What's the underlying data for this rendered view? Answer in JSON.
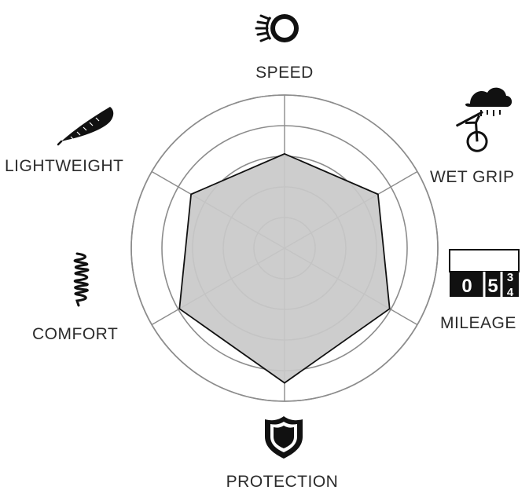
{
  "chart_data": {
    "type": "radar",
    "axes": [
      "SPEED",
      "WET GRIP",
      "MILEAGE",
      "PROTECTION",
      "COMFORT",
      "LIGHTWEIGHT"
    ],
    "values": [
      7,
      8,
      9,
      10,
      9,
      8
    ],
    "scale_max": 10,
    "ring_count": 5,
    "grid": true,
    "legend": "none",
    "fill_color": "#c9c9c9",
    "line_color": "#111111",
    "grid_color": "#8c8c8c"
  },
  "icons": {
    "speed": "spinning-wheel-icon",
    "wet_grip": "rain-cloud-bicycle-icon",
    "mileage": "odometer-icon",
    "protection": "shield-icon",
    "comfort": "spring-coil-icon",
    "lightweight": "feather-icon"
  },
  "odometer_digits": [
    "0",
    "5",
    "3",
    "4"
  ]
}
